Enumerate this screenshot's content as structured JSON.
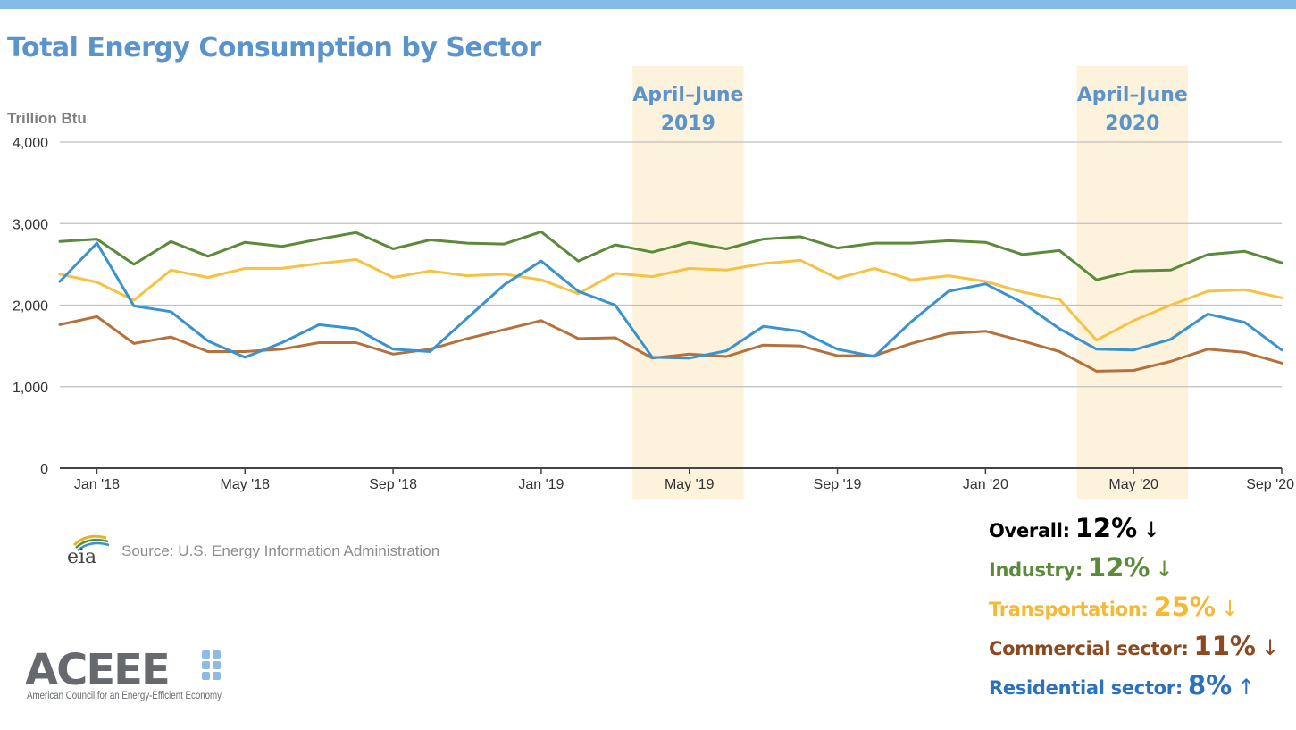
{
  "title": "Total Energy Consumption by Sector",
  "unit_label": "Trillion Btu",
  "source": "Source: U.S. Energy Information Administration",
  "eia_logo_text": "eia",
  "aceee": {
    "logo_text": "ACEEE",
    "tagline": "American Council for an Energy-Efficient Economy"
  },
  "colors": {
    "industry": "#5a8a3a",
    "transportation": "#f5c242",
    "commercial": "#b5713c",
    "residential": "#3a92cf",
    "title": "#5b93cb",
    "highlight": "#fdf2dc"
  },
  "stats": [
    {
      "label": "Overall:",
      "value": "12%",
      "arrow": "↓",
      "label_color": "#000000",
      "value_color": "#000000"
    },
    {
      "label": "Industry:",
      "value": "12%",
      "arrow": "↓",
      "label_color": "#5a8a3a",
      "value_color": "#5a8a3a"
    },
    {
      "label": "Transportation:",
      "value": "25%",
      "arrow": "↓",
      "label_color": "#f5b935",
      "value_color": "#f5b935"
    },
    {
      "label": "Commercial sector:",
      "value": "11%",
      "arrow": "↓",
      "label_color": "#8a4a1f",
      "value_color": "#8a4a1f"
    },
    {
      "label": "Residential sector:",
      "value": "8%",
      "arrow": "↑",
      "label_color": "#2a72c0",
      "value_color": "#2a72c0"
    }
  ],
  "chart_data": {
    "type": "line",
    "ylabel": "Trillion Btu",
    "ylim": [
      0,
      4000
    ],
    "yticks": [
      0,
      1000,
      2000,
      3000,
      4000
    ],
    "ytick_labels": [
      "0",
      "1,000",
      "2,000",
      "3,000",
      "4,000"
    ],
    "x_start": "2017-12",
    "x_end": "2020-09",
    "x": [
      "2017-12",
      "2018-01",
      "2018-02",
      "2018-03",
      "2018-04",
      "2018-05",
      "2018-06",
      "2018-07",
      "2018-08",
      "2018-09",
      "2018-10",
      "2018-11",
      "2018-12",
      "2019-01",
      "2019-02",
      "2019-03",
      "2019-04",
      "2019-05",
      "2019-06",
      "2019-07",
      "2019-08",
      "2019-09",
      "2019-10",
      "2019-11",
      "2019-12",
      "2020-01",
      "2020-02",
      "2020-03",
      "2020-04",
      "2020-05",
      "2020-06",
      "2020-07",
      "2020-08",
      "2020-09"
    ],
    "xtick_labels": [
      {
        "month": "2018-01",
        "label": "Jan '18"
      },
      {
        "month": "2018-05",
        "label": "May '18"
      },
      {
        "month": "2018-09",
        "label": "Sep '18"
      },
      {
        "month": "2019-01",
        "label": "Jan '19"
      },
      {
        "month": "2019-05",
        "label": "May '19"
      },
      {
        "month": "2019-09",
        "label": "Sep '19"
      },
      {
        "month": "2020-01",
        "label": "Jan '20"
      },
      {
        "month": "2020-05",
        "label": "May '20"
      },
      {
        "month": "2020-09",
        "label": "Sep '20"
      }
    ],
    "highlight_periods": [
      {
        "from": "2019-03-15",
        "to": "2019-06-15",
        "label_line1": "April–June",
        "label_line2": "2019"
      },
      {
        "from": "2020-03-15",
        "to": "2020-06-15",
        "label_line1": "April–June",
        "label_line2": "2020"
      }
    ],
    "series": [
      {
        "key": "industry",
        "color": "#5a8a3a",
        "values": [
          2780,
          2810,
          2500,
          2780,
          2600,
          2770,
          2720,
          2810,
          2890,
          2690,
          2800,
          2760,
          2750,
          2900,
          2540,
          2740,
          2650,
          2770,
          2690,
          2810,
          2840,
          2700,
          2760,
          2760,
          2790,
          2770,
          2620,
          2670,
          2310,
          2420,
          2430,
          2620,
          2660,
          2520
        ]
      },
      {
        "key": "transportation",
        "color": "#f5c242",
        "values": [
          2380,
          2280,
          2060,
          2430,
          2340,
          2450,
          2450,
          2510,
          2560,
          2340,
          2420,
          2360,
          2380,
          2310,
          2140,
          2390,
          2350,
          2450,
          2430,
          2510,
          2550,
          2330,
          2450,
          2310,
          2360,
          2290,
          2160,
          2070,
          1570,
          1810,
          2000,
          2170,
          2190,
          2090
        ]
      },
      {
        "key": "commercial",
        "color": "#b5713c",
        "values": [
          1760,
          1860,
          1530,
          1610,
          1430,
          1430,
          1460,
          1540,
          1540,
          1400,
          1460,
          1590,
          1700,
          1810,
          1590,
          1600,
          1350,
          1400,
          1370,
          1510,
          1500,
          1380,
          1380,
          1530,
          1650,
          1680,
          1560,
          1430,
          1190,
          1200,
          1310,
          1460,
          1420,
          1290
        ]
      },
      {
        "key": "residential",
        "color": "#3a92cf",
        "values": [
          2290,
          2760,
          1990,
          1920,
          1560,
          1360,
          1540,
          1760,
          1710,
          1460,
          1430,
          1840,
          2250,
          2540,
          2170,
          2000,
          1360,
          1350,
          1440,
          1740,
          1680,
          1460,
          1370,
          1800,
          2170,
          2260,
          2030,
          1710,
          1460,
          1450,
          1580,
          1890,
          1790,
          1450
        ]
      }
    ]
  }
}
